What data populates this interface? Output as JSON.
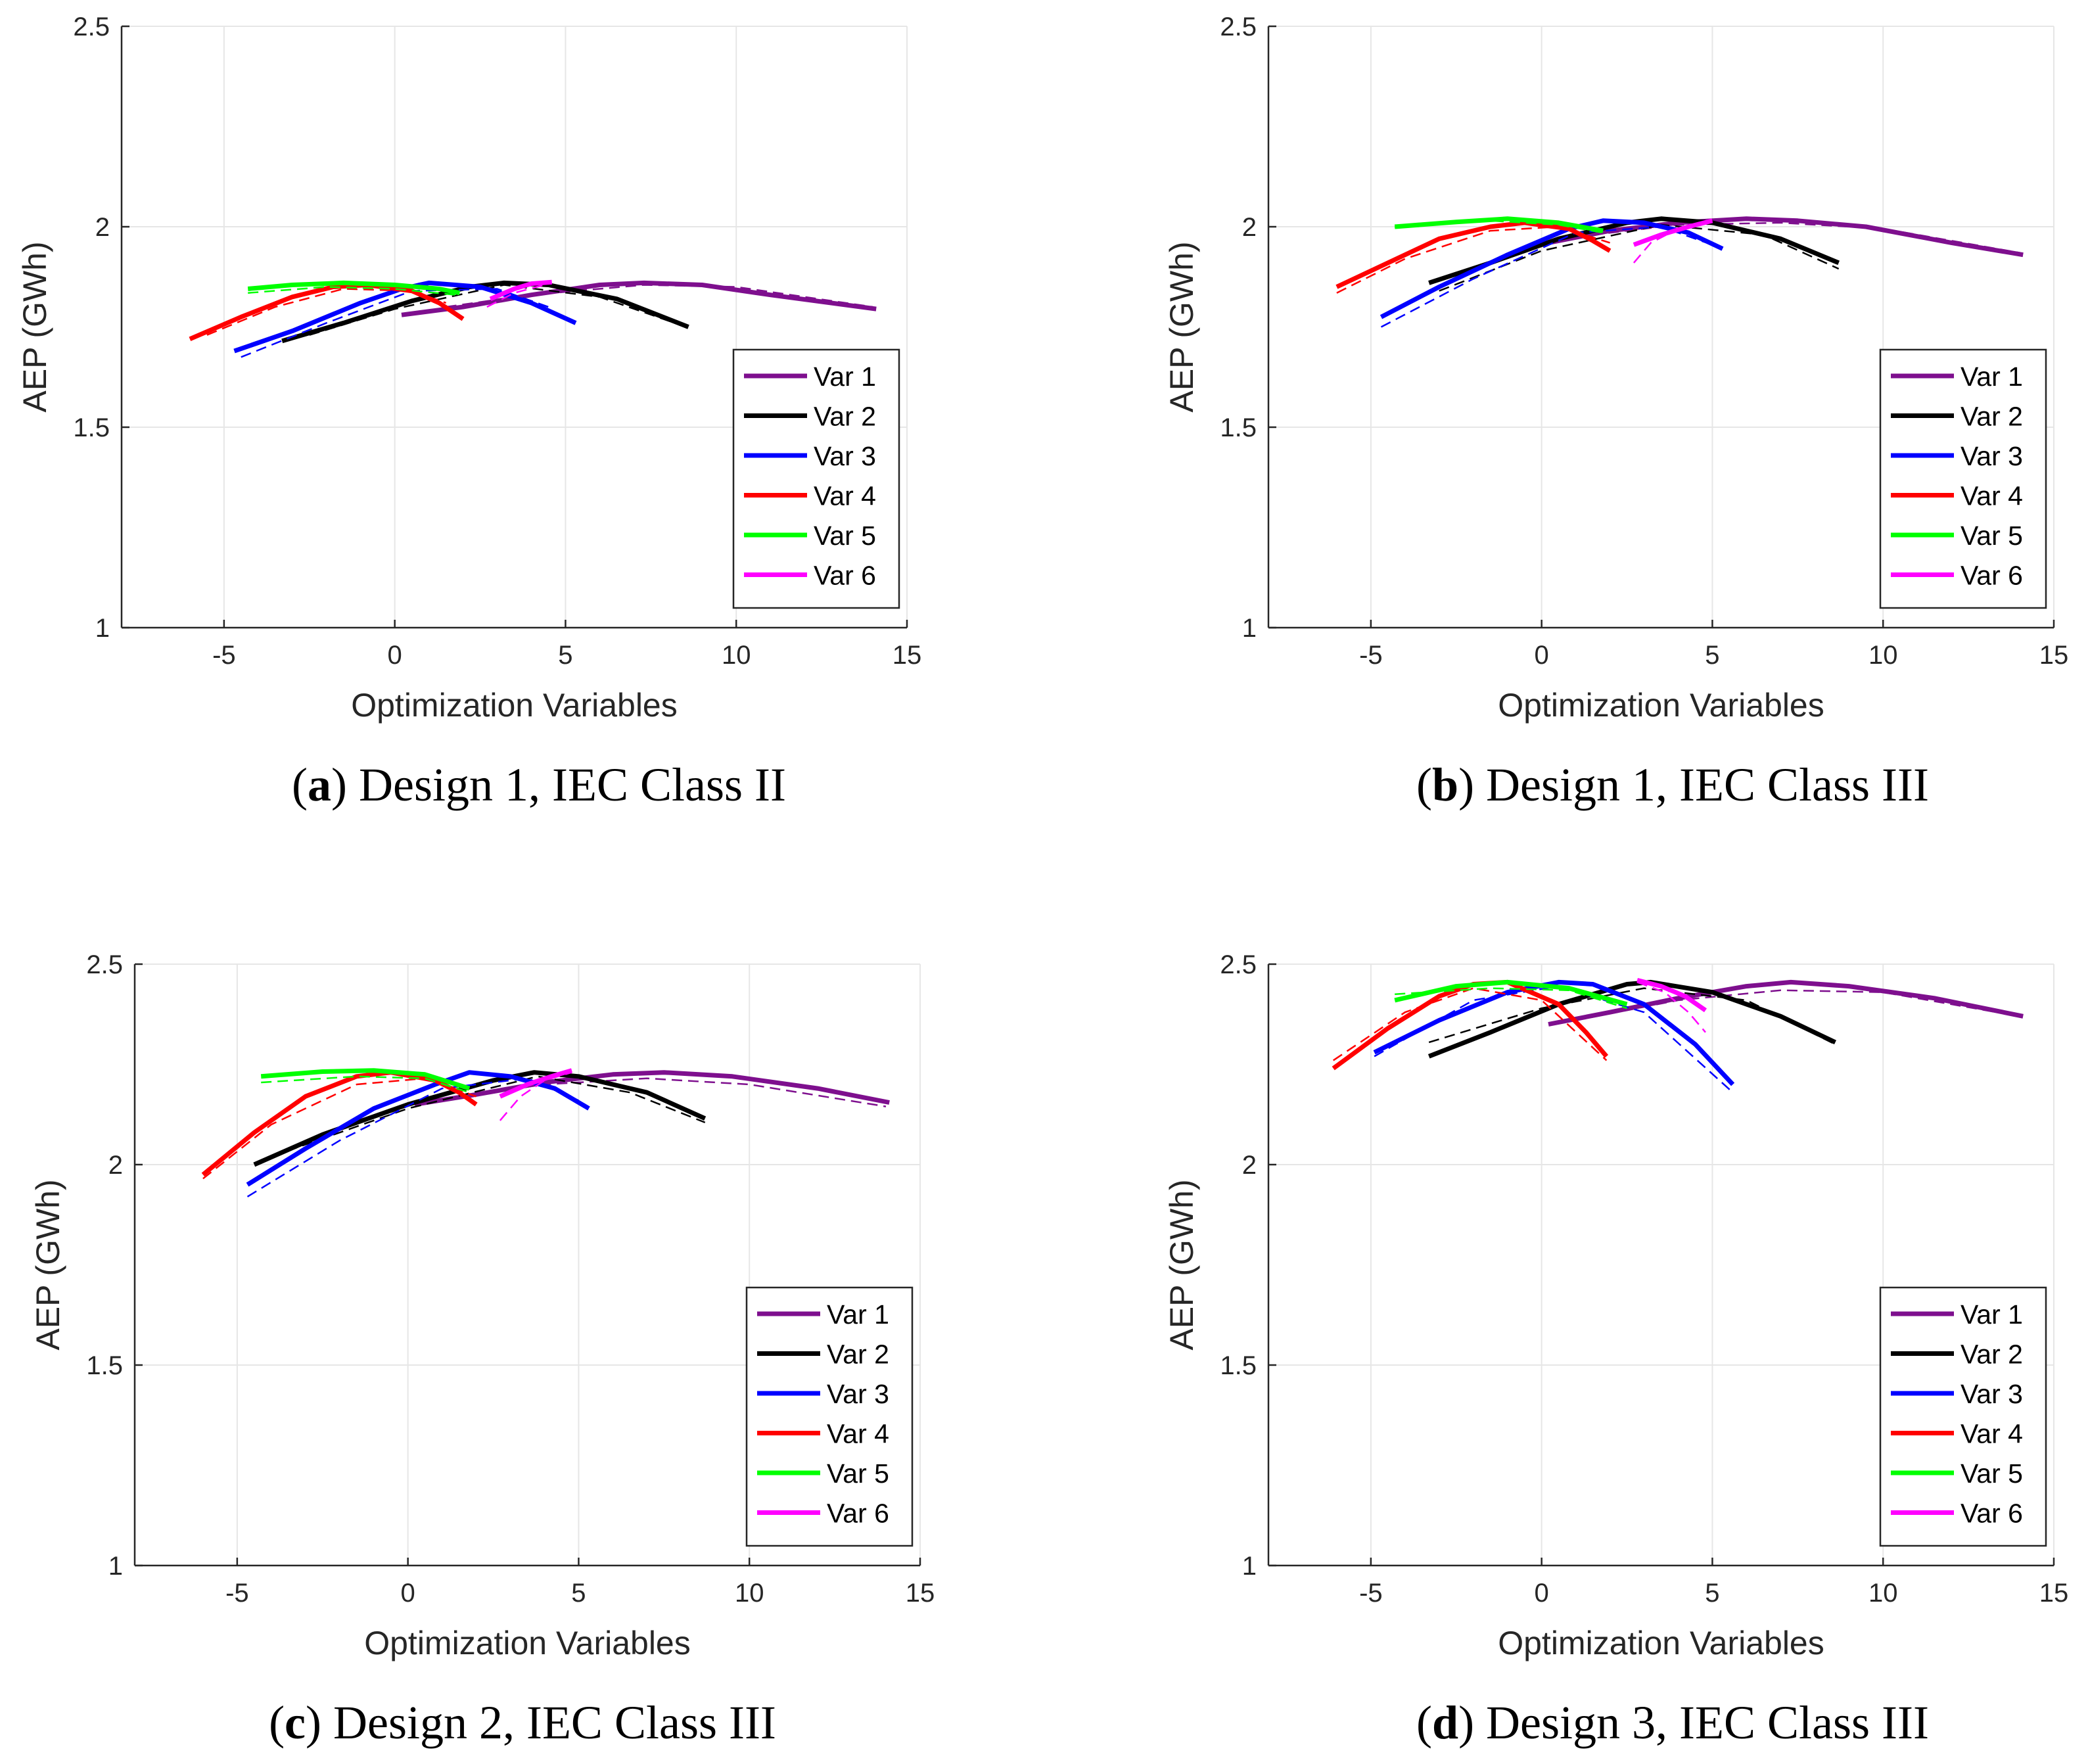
{
  "chart_data": [
    {
      "type": "line",
      "caption": {
        "letter": "a",
        "text": "Design 1, IEC Class II"
      },
      "xlabel": "Optimization Variables",
      "ylabel": "AEP (GWh)",
      "xlim": [
        -8,
        15
      ],
      "ylim": [
        1,
        2.5
      ],
      "xticks": [
        "-5",
        "0",
        "5",
        "10",
        "15"
      ],
      "yticks": [
        "1",
        "1.5",
        "2",
        "2.5"
      ],
      "grid": true,
      "legend_position": "bottom-right",
      "series": [
        {
          "name": "Var 1",
          "color": "#7e0f8e",
          "solid": {
            "x": [
              0.2,
              2,
              4,
              6,
              7.3,
              9,
              11,
              14.1
            ],
            "y": [
              1.78,
              1.8,
              1.83,
              1.855,
              1.86,
              1.855,
              1.83,
              1.795
            ]
          },
          "dashed": {
            "x": [
              1.5,
              4,
              7.3,
              10,
              14
            ],
            "y": [
              1.8,
              1.83,
              1.855,
              1.85,
              1.8
            ]
          }
        },
        {
          "name": "Var 2",
          "color": "#000000",
          "solid": {
            "x": [
              -3.3,
              -1.5,
              0.5,
              2.2,
              3.2,
              4.5,
              6.5,
              8.6
            ],
            "y": [
              1.715,
              1.76,
              1.815,
              1.85,
              1.86,
              1.855,
              1.82,
              1.75
            ]
          },
          "dashed": {
            "x": [
              -2.5,
              0,
              3.2,
              6,
              8.2
            ],
            "y": [
              1.73,
              1.795,
              1.855,
              1.825,
              1.76
            ]
          }
        },
        {
          "name": "Var 3",
          "color": "#0000ff",
          "solid": {
            "x": [
              -4.7,
              -3,
              -1,
              0.2,
              1,
              2.5,
              4,
              5.3
            ],
            "y": [
              1.69,
              1.74,
              1.81,
              1.845,
              1.86,
              1.85,
              1.81,
              1.76
            ]
          },
          "dashed": {
            "x": [
              -4.5,
              -2,
              0.5,
              3,
              4.5
            ],
            "y": [
              1.675,
              1.76,
              1.84,
              1.845,
              1.8
            ]
          }
        },
        {
          "name": "Var 4",
          "color": "#ff0000",
          "solid": {
            "x": [
              -6,
              -4.5,
              -3,
              -1.8,
              -0.8,
              0.5,
              1.3,
              2
            ],
            "y": [
              1.72,
              1.775,
              1.825,
              1.85,
              1.855,
              1.84,
              1.81,
              1.77
            ]
          },
          "dashed": {
            "x": [
              -5.5,
              -3.5,
              -1.5,
              0.5,
              1.5
            ],
            "y": [
              1.73,
              1.8,
              1.845,
              1.84,
              1.81
            ]
          }
        },
        {
          "name": "Var 5",
          "color": "#00ff00",
          "solid": {
            "x": [
              -4.3,
              -3,
              -1.5,
              0,
              1.3,
              1.9
            ],
            "y": [
              1.845,
              1.855,
              1.86,
              1.855,
              1.845,
              1.835
            ]
          },
          "dashed": {
            "x": [
              -4.3,
              -2,
              0,
              1.8
            ],
            "y": [
              1.835,
              1.85,
              1.845,
              1.83
            ]
          }
        },
        {
          "name": "Var 6",
          "color": "#ff00ff",
          "solid": {
            "x": [
              2.8,
              3.5,
              4,
              4.6
            ],
            "y": [
              1.82,
              1.845,
              1.858,
              1.862
            ]
          },
          "dashed": {
            "x": [
              2.7,
              3.5,
              4.6
            ],
            "y": [
              1.8,
              1.835,
              1.86
            ]
          }
        }
      ]
    },
    {
      "type": "line",
      "caption": {
        "letter": "b",
        "text": "Design 1, IEC Class III"
      },
      "xlabel": "Optimization Variables",
      "ylabel": "AEP (GWh)",
      "xlim": [
        -8,
        15
      ],
      "ylim": [
        1,
        2.5
      ],
      "xticks": [
        "-5",
        "0",
        "5",
        "10",
        "15"
      ],
      "yticks": [
        "1",
        "1.5",
        "2",
        "2.5"
      ],
      "grid": true,
      "legend_position": "bottom-right",
      "series": [
        {
          "name": "Var 1",
          "color": "#7e0f8e",
          "solid": {
            "x": [
              0.2,
              2,
              4,
              6,
              7.5,
              9.5,
              12,
              14.1
            ],
            "y": [
              1.96,
              1.99,
              2.01,
              2.02,
              2.015,
              2.0,
              1.96,
              1.93
            ]
          },
          "dashed": {
            "x": [
              1,
              4,
              7,
              10,
              14
            ],
            "y": [
              1.975,
              2.005,
              2.01,
              1.995,
              1.935
            ]
          }
        },
        {
          "name": "Var 2",
          "color": "#000000",
          "solid": {
            "x": [
              -3.3,
              -1.5,
              0.5,
              2.5,
              3.5,
              5,
              7,
              8.7
            ],
            "y": [
              1.86,
              1.91,
              1.97,
              2.01,
              2.02,
              2.01,
              1.97,
              1.91
            ]
          },
          "dashed": {
            "x": [
              -3,
              0,
              3.5,
              6.5,
              8.7
            ],
            "y": [
              1.84,
              1.94,
              2.005,
              1.98,
              1.895
            ]
          }
        },
        {
          "name": "Var 3",
          "color": "#0000ff",
          "solid": {
            "x": [
              -4.7,
              -3,
              -1,
              0.8,
              1.8,
              3,
              4.3,
              5.3
            ],
            "y": [
              1.775,
              1.85,
              1.93,
              1.995,
              2.015,
              2.01,
              1.985,
              1.945
            ]
          },
          "dashed": {
            "x": [
              -4.7,
              -2,
              1,
              3.5,
              5
            ],
            "y": [
              1.75,
              1.87,
              1.985,
              2.0,
              1.955
            ]
          }
        },
        {
          "name": "Var 4",
          "color": "#ff0000",
          "solid": {
            "x": [
              -6,
              -4.5,
              -3,
              -1.5,
              -0.5,
              0.8,
              1.5,
              2
            ],
            "y": [
              1.85,
              1.91,
              1.97,
              2.0,
              2.01,
              1.995,
              1.965,
              1.94
            ]
          },
          "dashed": {
            "x": [
              -6,
              -4,
              -1.5,
              0.5,
              2
            ],
            "y": [
              1.835,
              1.92,
              1.99,
              2.0,
              1.96
            ]
          }
        },
        {
          "name": "Var 5",
          "color": "#00ff00",
          "solid": {
            "x": [
              -4.3,
              -2.5,
              -1,
              0.5,
              1.8
            ],
            "y": [
              2.0,
              2.012,
              2.02,
              2.01,
              1.99
            ]
          },
          "dashed": {
            "x": [
              -4.3,
              -1.5,
              0.5,
              1.8
            ],
            "y": [
              2.0,
              2.015,
              2.005,
              1.985
            ]
          }
        },
        {
          "name": "Var 6",
          "color": "#ff00ff",
          "solid": {
            "x": [
              2.7,
              3.5,
              4.3,
              5
            ],
            "y": [
              1.955,
              1.98,
              2.0,
              2.015
            ]
          },
          "dashed": {
            "x": [
              2.7,
              3.2,
              4,
              5
            ],
            "y": [
              1.91,
              1.96,
              1.995,
              2.015
            ]
          }
        }
      ]
    },
    {
      "type": "line",
      "caption": {
        "letter": "c",
        "text": "Design 2, IEC Class III"
      },
      "xlabel": "Optimization Variables",
      "ylabel": "AEP (GWh)",
      "xlim": [
        -8,
        15
      ],
      "ylim": [
        1,
        2.5
      ],
      "xticks": [
        "-5",
        "0",
        "5",
        "10",
        "15"
      ],
      "yticks": [
        "1",
        "1.5",
        "2",
        "2.5"
      ],
      "grid": true,
      "legend_position": "bottom-right",
      "series": [
        {
          "name": "Var 1",
          "color": "#7e0f8e",
          "solid": {
            "x": [
              0.2,
              2,
              4,
              6,
              7.5,
              9.5,
              12,
              14.1
            ],
            "y": [
              2.15,
              2.175,
              2.205,
              2.225,
              2.23,
              2.22,
              2.19,
              2.155
            ]
          },
          "dashed": {
            "x": [
              1.5,
              4,
              7,
              10,
              14
            ],
            "y": [
              2.17,
              2.2,
              2.215,
              2.2,
              2.145
            ]
          }
        },
        {
          "name": "Var 2",
          "color": "#000000",
          "solid": {
            "x": [
              -4.5,
              -2.5,
              0,
              2.5,
              3.7,
              5,
              7,
              8.7
            ],
            "y": [
              2.0,
              2.075,
              2.15,
              2.21,
              2.23,
              2.22,
              2.18,
              2.115
            ]
          },
          "dashed": {
            "x": [
              -4,
              0,
              3.8,
              6.5,
              8.7
            ],
            "y": [
              2.02,
              2.14,
              2.22,
              2.18,
              2.105
            ]
          }
        },
        {
          "name": "Var 3",
          "color": "#0000ff",
          "solid": {
            "x": [
              -4.7,
              -3,
              -1,
              0.8,
              1.8,
              3,
              4.3,
              5.3
            ],
            "y": [
              1.95,
              2.04,
              2.14,
              2.2,
              2.23,
              2.22,
              2.19,
              2.14
            ]
          },
          "dashed": {
            "x": [
              -4.7,
              -2,
              1,
              3.5,
              5
            ],
            "y": [
              1.92,
              2.06,
              2.19,
              2.215,
              2.16
            ]
          }
        },
        {
          "name": "Var 4",
          "color": "#ff0000",
          "solid": {
            "x": [
              -6,
              -4.5,
              -3,
              -1.5,
              -0.5,
              0.8,
              1.5,
              2
            ],
            "y": [
              1.975,
              2.08,
              2.17,
              2.22,
              2.23,
              2.21,
              2.18,
              2.15
            ]
          },
          "dashed": {
            "x": [
              -6,
              -4,
              -1.5,
              0.5,
              2
            ],
            "y": [
              1.965,
              2.1,
              2.2,
              2.215,
              2.17
            ]
          }
        },
        {
          "name": "Var 5",
          "color": "#00ff00",
          "solid": {
            "x": [
              -4.3,
              -2.5,
              -1,
              0.5,
              1.8
            ],
            "y": [
              2.22,
              2.232,
              2.235,
              2.225,
              2.19
            ]
          },
          "dashed": {
            "x": [
              -4.3,
              -1.5,
              0.5,
              1.8
            ],
            "y": [
              2.205,
              2.22,
              2.215,
              2.18
            ]
          }
        },
        {
          "name": "Var 6",
          "color": "#ff00ff",
          "solid": {
            "x": [
              2.7,
              3.5,
              4.2,
              4.8
            ],
            "y": [
              2.17,
              2.2,
              2.22,
              2.235
            ]
          },
          "dashed": {
            "x": [
              2.7,
              3.3,
              4,
              4.8
            ],
            "y": [
              2.11,
              2.17,
              2.21,
              2.23
            ]
          }
        }
      ]
    },
    {
      "type": "line",
      "caption": {
        "letter": "d",
        "text": "Design 3, IEC Class III"
      },
      "xlabel": "Optimization Variables",
      "ylabel": "AEP (GWh)",
      "xlim": [
        -8,
        15
      ],
      "ylim": [
        1,
        2.5
      ],
      "xticks": [
        "-5",
        "0",
        "5",
        "10",
        "15"
      ],
      "yticks": [
        "1",
        "1.5",
        "2",
        "2.5"
      ],
      "grid": true,
      "legend_position": "bottom-right",
      "series": [
        {
          "name": "Var 1",
          "color": "#7e0f8e",
          "solid": {
            "x": [
              0.2,
              2,
              4,
              6,
              7.3,
              9,
              11.5,
              14.1
            ],
            "y": [
              2.35,
              2.38,
              2.415,
              2.445,
              2.455,
              2.445,
              2.415,
              2.37
            ]
          },
          "dashed": {
            "x": [
              1,
              4,
              7,
              10,
              14
            ],
            "y": [
              2.36,
              2.41,
              2.435,
              2.43,
              2.37
            ]
          }
        },
        {
          "name": "Var 2",
          "color": "#000000",
          "solid": {
            "x": [
              -3.3,
              -1.5,
              0.5,
              2.5,
              3.2,
              5,
              7,
              8.6
            ],
            "y": [
              2.27,
              2.33,
              2.4,
              2.45,
              2.455,
              2.43,
              2.37,
              2.305
            ]
          },
          "dashed": {
            "x": [
              -3.3,
              0,
              3,
              6,
              8.6
            ],
            "y": [
              2.305,
              2.39,
              2.44,
              2.41,
              2.3
            ]
          }
        },
        {
          "name": "Var 3",
          "color": "#0000ff",
          "solid": {
            "x": [
              -4.9,
              -3,
              -1,
              0.5,
              1.5,
              3,
              4.5,
              5.6
            ],
            "y": [
              2.28,
              2.36,
              2.43,
              2.455,
              2.45,
              2.4,
              2.3,
              2.2
            ]
          },
          "dashed": {
            "x": [
              -4.9,
              -2,
              0.5,
              3,
              5.6
            ],
            "y": [
              2.27,
              2.41,
              2.445,
              2.38,
              2.18
            ]
          }
        },
        {
          "name": "Var 4",
          "color": "#ff0000",
          "solid": {
            "x": [
              -6.1,
              -4.5,
              -3,
              -2,
              -1,
              0.5,
              1.3,
              1.9
            ],
            "y": [
              2.24,
              2.34,
              2.42,
              2.45,
              2.455,
              2.4,
              2.33,
              2.27
            ]
          },
          "dashed": {
            "x": [
              -6.1,
              -4,
              -2,
              0,
              1.9
            ],
            "y": [
              2.26,
              2.38,
              2.44,
              2.41,
              2.26
            ]
          }
        },
        {
          "name": "Var 5",
          "color": "#00ff00",
          "solid": {
            "x": [
              -4.3,
              -2.5,
              -1,
              0.8,
              2.5
            ],
            "y": [
              2.41,
              2.445,
              2.455,
              2.44,
              2.4
            ]
          },
          "dashed": {
            "x": [
              -4.3,
              -1.5,
              0.8,
              2.5
            ],
            "y": [
              2.425,
              2.44,
              2.435,
              2.39
            ]
          }
        },
        {
          "name": "Var 6",
          "color": "#ff00ff",
          "solid": {
            "x": [
              2.8,
              3.5,
              4.2,
              4.8
            ],
            "y": [
              2.46,
              2.445,
              2.42,
              2.385
            ]
          },
          "dashed": {
            "x": [
              2.8,
              3.6,
              4.3,
              4.8
            ],
            "y": [
              2.455,
              2.43,
              2.38,
              2.33
            ]
          }
        }
      ]
    }
  ]
}
